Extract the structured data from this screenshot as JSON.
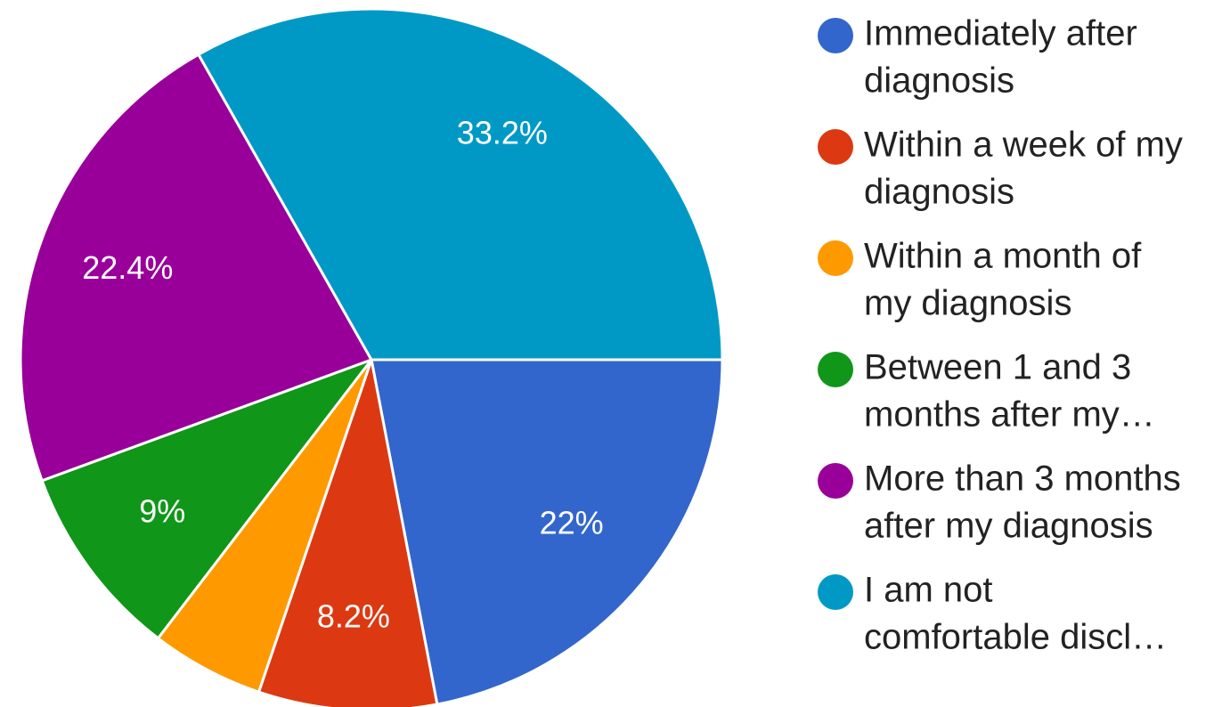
{
  "chart_data": {
    "type": "pie",
    "categories": [
      [
        "Immediately after",
        "diagnosis"
      ],
      [
        "Within a week of my",
        "diagnosis"
      ],
      [
        "Within a month of",
        "my diagnosis"
      ],
      [
        "Between 1 and 3",
        "months after my…"
      ],
      [
        "More than 3 months",
        "after my diagnosis"
      ],
      [
        "I am not",
        "comfortable discl…"
      ]
    ],
    "values": [
      22,
      8.2,
      5.2,
      9,
      22.4,
      33.2
    ],
    "value_labels": [
      "22%",
      "8.2%",
      null,
      "9%",
      "22.4%",
      "33.2%"
    ],
    "colors": [
      "#3366cc",
      "#dc3912",
      "#ff9900",
      "#109618",
      "#990099",
      "#0099c6"
    ]
  }
}
